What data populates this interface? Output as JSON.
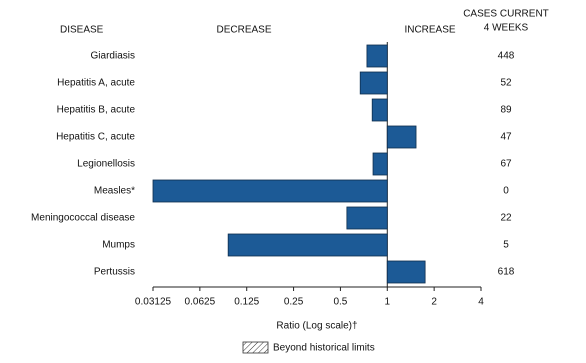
{
  "chart_data": {
    "type": "bar",
    "orientation": "horizontal",
    "headers": {
      "disease": "DISEASE",
      "decrease": "DECREASE",
      "increase": "INCREASE",
      "cases": [
        "CASES CURRENT",
        "4 WEEKS"
      ]
    },
    "categories": [
      "Giardiasis",
      "Hepatitis A, acute",
      "Hepatitis B, acute",
      "Hepatitis C, acute",
      "Legionellosis",
      "Measles*",
      "Meningococcal disease",
      "Mumps",
      "Pertussis"
    ],
    "values": [
      0.74,
      0.67,
      0.8,
      1.53,
      0.81,
      0.03125,
      0.55,
      0.095,
      1.75
    ],
    "cases_current_4_weeks": [
      448,
      52,
      89,
      47,
      67,
      0,
      22,
      5,
      618
    ],
    "color": "#1c5a96",
    "log_scale": true,
    "xlim": [
      0.03125,
      4
    ],
    "xticks": [
      0.03125,
      0.0625,
      0.125,
      0.25,
      0.5,
      1,
      2,
      4
    ],
    "x_label": "Ratio (Log scale)†",
    "legend_label": "Beyond historical limits"
  }
}
